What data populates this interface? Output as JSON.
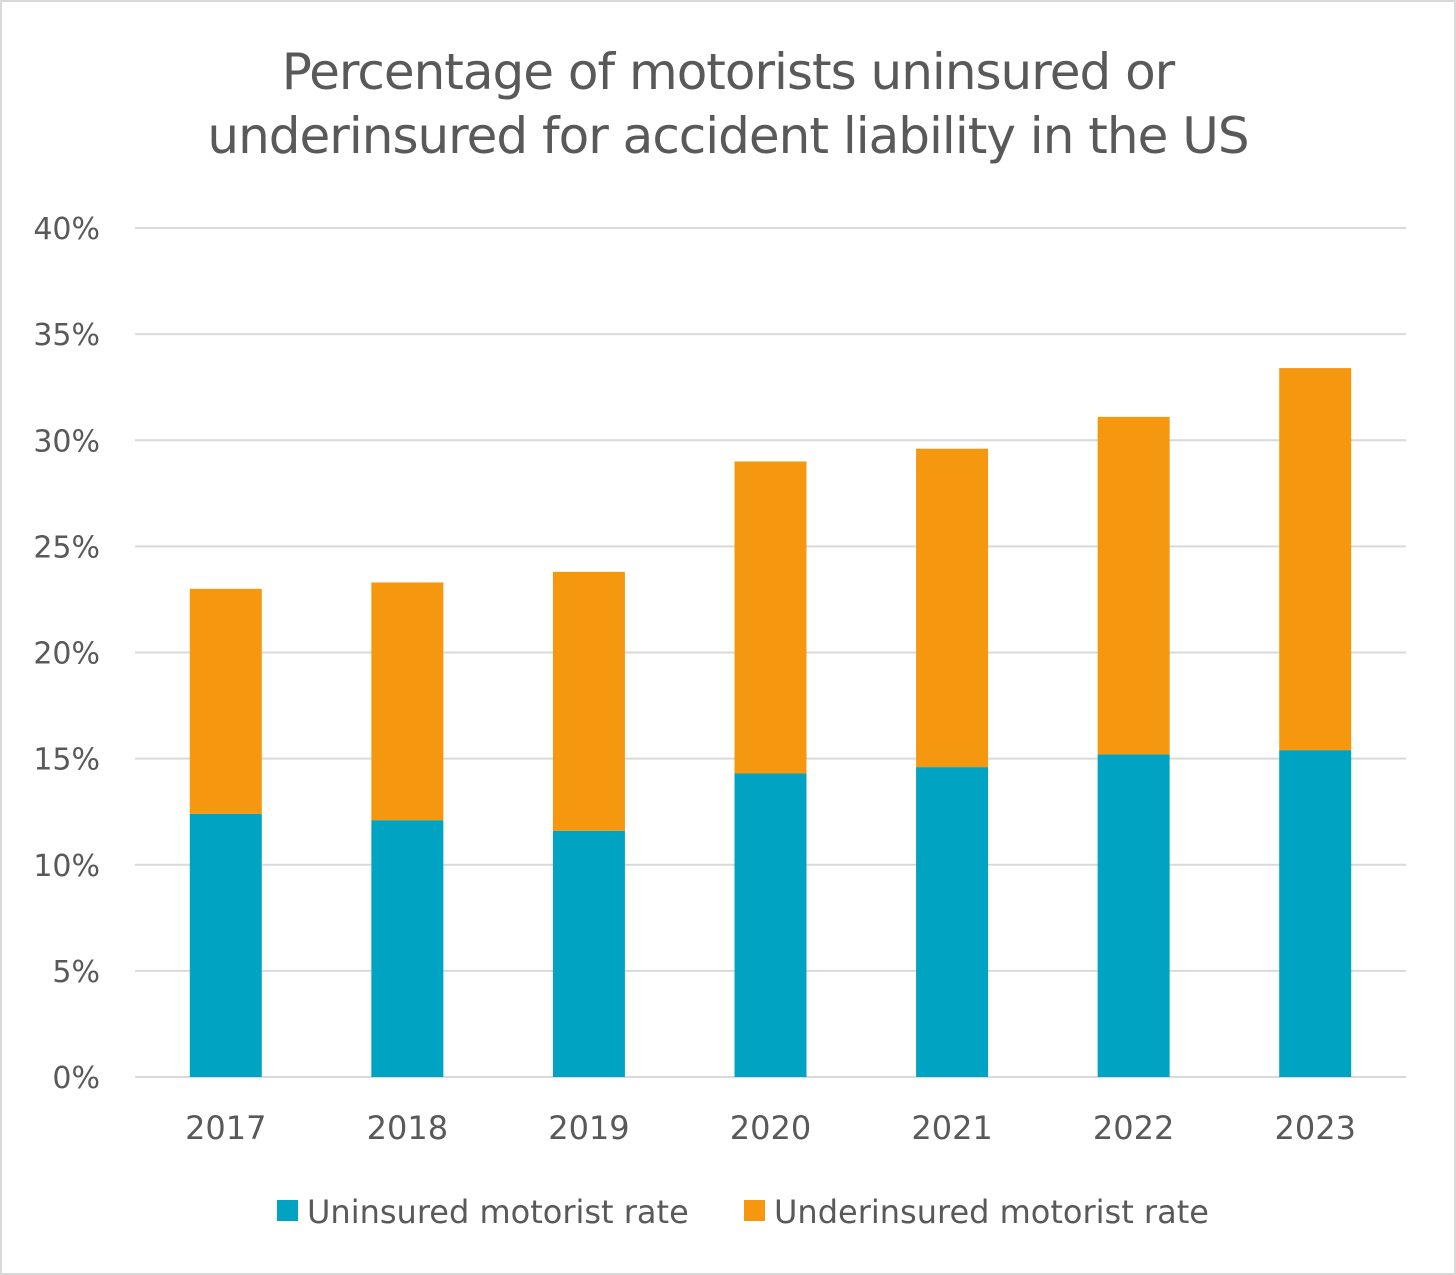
{
  "chart_data": {
    "type": "bar",
    "stacked": true,
    "title_line1": "Percentage of motorists uninsured or",
    "title_line2": "underinsured for accident liability in the US",
    "categories": [
      "2017",
      "2018",
      "2019",
      "2020",
      "2021",
      "2022",
      "2023"
    ],
    "series": [
      {
        "name": "Uninsured motorist rate",
        "color": "#00a3c1",
        "values": [
          12.4,
          12.1,
          11.6,
          14.3,
          14.6,
          15.2,
          15.4
        ]
      },
      {
        "name": "Underinsured motorist rate",
        "color": "#f5970f",
        "values": [
          10.6,
          11.2,
          12.2,
          14.7,
          15.0,
          15.9,
          18.0
        ]
      }
    ],
    "ylim": [
      0,
      40
    ],
    "yticks": [
      0,
      5,
      10,
      15,
      20,
      25,
      30,
      35,
      40
    ],
    "ytick_labels": [
      "0%",
      "5%",
      "10%",
      "15%",
      "20%",
      "25%",
      "30%",
      "35%",
      "40%"
    ],
    "grid": true,
    "gridline_color": "#d9d9d9",
    "legend_position": "bottom"
  }
}
